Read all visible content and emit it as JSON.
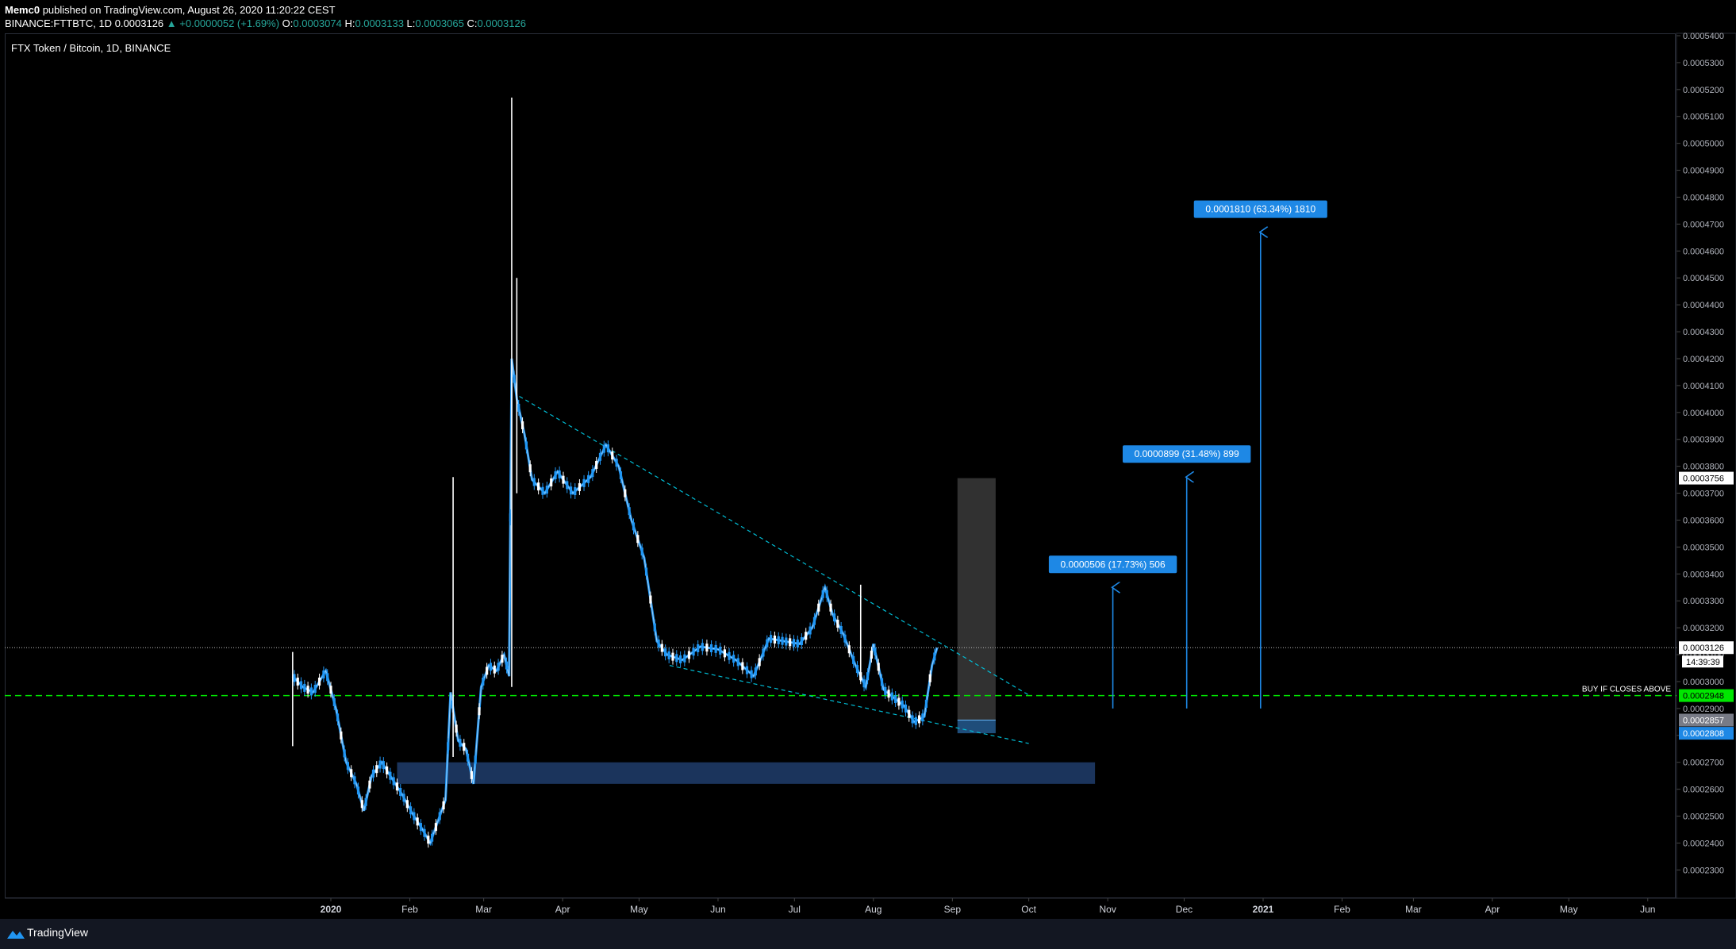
{
  "header": {
    "author": "Memc0",
    "published_text": "published on TradingView.com, August 26, 2020 11:20:22 CEST",
    "symbol_line": "BINANCE:FTTBTC, 1D",
    "last": "0.0003126",
    "change": "▲ +0.0000052 (+1.69%)",
    "o_label": "O:",
    "o": "0.0003074",
    "h_label": "H:",
    "h": "0.0003133",
    "l_label": "L:",
    "l": "0.0003065",
    "c_label": "C:",
    "c": "0.0003126"
  },
  "chart_title": "FTX Token / Bitcoin, 1D, BINANCE",
  "footer": {
    "brand": "TradingView"
  },
  "colors": {
    "up": "#2196f3",
    "down": "#ffffff",
    "support": "#00e600",
    "trend": "#00bcd4",
    "accent": "#1e88e5",
    "zone": "#1e3a66"
  },
  "chart_data": {
    "type": "candlestick",
    "title": "FTX Token / Bitcoin, 1D, BINANCE",
    "x_ticks": [
      "2020",
      "Feb",
      "Mar",
      "Apr",
      "May",
      "Jun",
      "Jul",
      "Aug",
      "Sep",
      "Oct",
      "Nov",
      "Dec",
      "2021",
      "Feb",
      "Mar",
      "Apr",
      "May",
      "Jun"
    ],
    "y_ticks": [
      "0.0002300",
      "0.0002400",
      "0.0002500",
      "0.0002600",
      "0.0002700",
      "0.0002800",
      "0.0002900",
      "0.0003000",
      "0.0003100",
      "0.0003200",
      "0.0003300",
      "0.0003400",
      "0.0003500",
      "0.0003600",
      "0.0003700",
      "0.0003800",
      "0.0003900",
      "0.0004000",
      "0.0004100",
      "0.0004200",
      "0.0004300",
      "0.0004400",
      "0.0004500",
      "0.0004600",
      "0.0004700",
      "0.0004800",
      "0.0004900",
      "0.0005000",
      "0.0005100",
      "0.0005200",
      "0.0005300",
      "0.0005400"
    ],
    "ylim": [
      0.0002195,
      0.00054
    ],
    "price_path": [
      [
        "2019-12-17",
        0.000302
      ],
      [
        "2019-12-21",
        0.000298
      ],
      [
        "2019-12-25",
        0.000296
      ],
      [
        "2019-12-30",
        0.000304
      ],
      [
        "2020-01-03",
        0.00029
      ],
      [
        "2020-01-07",
        0.00027
      ],
      [
        "2020-01-11",
        0.000262
      ],
      [
        "2020-01-14",
        0.000252
      ],
      [
        "2020-01-17",
        0.000265
      ],
      [
        "2020-01-21",
        0.00027
      ],
      [
        "2020-01-25",
        0.000264
      ],
      [
        "2020-01-29",
        0.000258
      ],
      [
        "2020-02-02",
        0.000251
      ],
      [
        "2020-02-06",
        0.000245
      ],
      [
        "2020-02-09",
        0.00024
      ],
      [
        "2020-02-12",
        0.000248
      ],
      [
        "2020-02-15",
        0.000256
      ],
      [
        "2020-02-17",
        0.000296
      ],
      [
        "2020-02-20",
        0.000278
      ],
      [
        "2020-02-23",
        0.000275
      ],
      [
        "2020-02-26",
        0.000262
      ],
      [
        "2020-02-29",
        0.000298
      ],
      [
        "2020-03-03",
        0.000306
      ],
      [
        "2020-03-06",
        0.000304
      ],
      [
        "2020-03-09",
        0.00031
      ],
      [
        "2020-03-11",
        0.000302
      ],
      [
        "2020-03-12",
        0.00042
      ],
      [
        "2020-03-14",
        0.000405
      ],
      [
        "2020-03-17",
        0.000392
      ],
      [
        "2020-03-20",
        0.000375
      ],
      [
        "2020-03-25",
        0.00037
      ],
      [
        "2020-03-30",
        0.000378
      ],
      [
        "2020-04-05",
        0.00037
      ],
      [
        "2020-04-12",
        0.000376
      ],
      [
        "2020-04-18",
        0.000388
      ],
      [
        "2020-04-23",
        0.00038
      ],
      [
        "2020-04-28",
        0.00036
      ],
      [
        "2020-05-03",
        0.000346
      ],
      [
        "2020-05-08",
        0.000315
      ],
      [
        "2020-05-12",
        0.00031
      ],
      [
        "2020-05-18",
        0.000308
      ],
      [
        "2020-05-25",
        0.000313
      ],
      [
        "2020-06-01",
        0.000312
      ],
      [
        "2020-06-08",
        0.000308
      ],
      [
        "2020-06-15",
        0.000302
      ],
      [
        "2020-06-21",
        0.000316
      ],
      [
        "2020-06-27",
        0.000315
      ],
      [
        "2020-07-03",
        0.000314
      ],
      [
        "2020-07-08",
        0.00032
      ],
      [
        "2020-07-13",
        0.000335
      ],
      [
        "2020-07-16",
        0.000325
      ],
      [
        "2020-07-20",
        0.000318
      ],
      [
        "2020-07-25",
        0.000306
      ],
      [
        "2020-07-29",
        0.000298
      ],
      [
        "2020-08-01",
        0.000314
      ],
      [
        "2020-08-05",
        0.000297
      ],
      [
        "2020-08-09",
        0.000294
      ],
      [
        "2020-08-13",
        0.000291
      ],
      [
        "2020-08-17",
        0.000285
      ],
      [
        "2020-08-21",
        0.000287
      ],
      [
        "2020-08-24",
        0.000306
      ],
      [
        "2020-08-26",
        0.0003126
      ]
    ],
    "spikes": [
      {
        "date": "2019-12-17",
        "high": 0.000311,
        "low": 0.000276
      },
      {
        "date": "2020-02-18",
        "high": 0.000376,
        "low": 0.000272
      },
      {
        "date": "2020-03-12",
        "high": 0.000517,
        "low": 0.000298
      },
      {
        "date": "2020-03-14",
        "high": 0.00045,
        "low": 0.00037
      },
      {
        "date": "2020-07-27",
        "high": 0.000336,
        "low": 0.0003
      }
    ],
    "support_line": {
      "value": 0.0002948,
      "label": "BUY IF CLOSES ABOVE"
    },
    "current_price_line": 0.0003126,
    "trendline_upper": {
      "from": [
        "2020-03-15",
        0.000406
      ],
      "to": [
        "2020-10-01",
        0.000295
      ]
    },
    "trendline_lower": {
      "from": [
        "2020-05-13",
        0.000306
      ],
      "to": [
        "2020-10-01",
        0.000277
      ]
    },
    "demand_zone": {
      "from": "2020-01-27",
      "to": "2020-10-27",
      "top": 0.00027,
      "bottom": 0.000262
    },
    "position_box": {
      "from": "2020-09-03",
      "to": "2020-09-18",
      "top": 0.0003756,
      "bottom": 0.0002808,
      "entry": 0.0002857
    },
    "targets": [
      {
        "date": "2020-11-03",
        "base": 0.00029,
        "top": 0.000335,
        "label": "0.0000506 (17.73%) 506"
      },
      {
        "date": "2020-12-02",
        "base": 0.00029,
        "top": 0.000376,
        "label": "0.0000899 (31.48%) 899"
      },
      {
        "date": "2020-12-31",
        "base": 0.00029,
        "top": 0.000467,
        "label": "0.0001810 (63.34%) 1810"
      }
    ],
    "price_axis_labels": [
      {
        "value": 0.0003756,
        "text": "0.0003756",
        "style": "white"
      },
      {
        "value": 0.0003126,
        "text": "0.0003126",
        "style": "white"
      },
      {
        "value": 0.0002948,
        "text": "0.0002948",
        "style": "green"
      },
      {
        "value": 0.0002857,
        "text": "0.0002857",
        "style": "gray"
      },
      {
        "value": 0.0002808,
        "text": "0.0002808",
        "style": "blue"
      }
    ],
    "countdown": "14:39:39"
  }
}
